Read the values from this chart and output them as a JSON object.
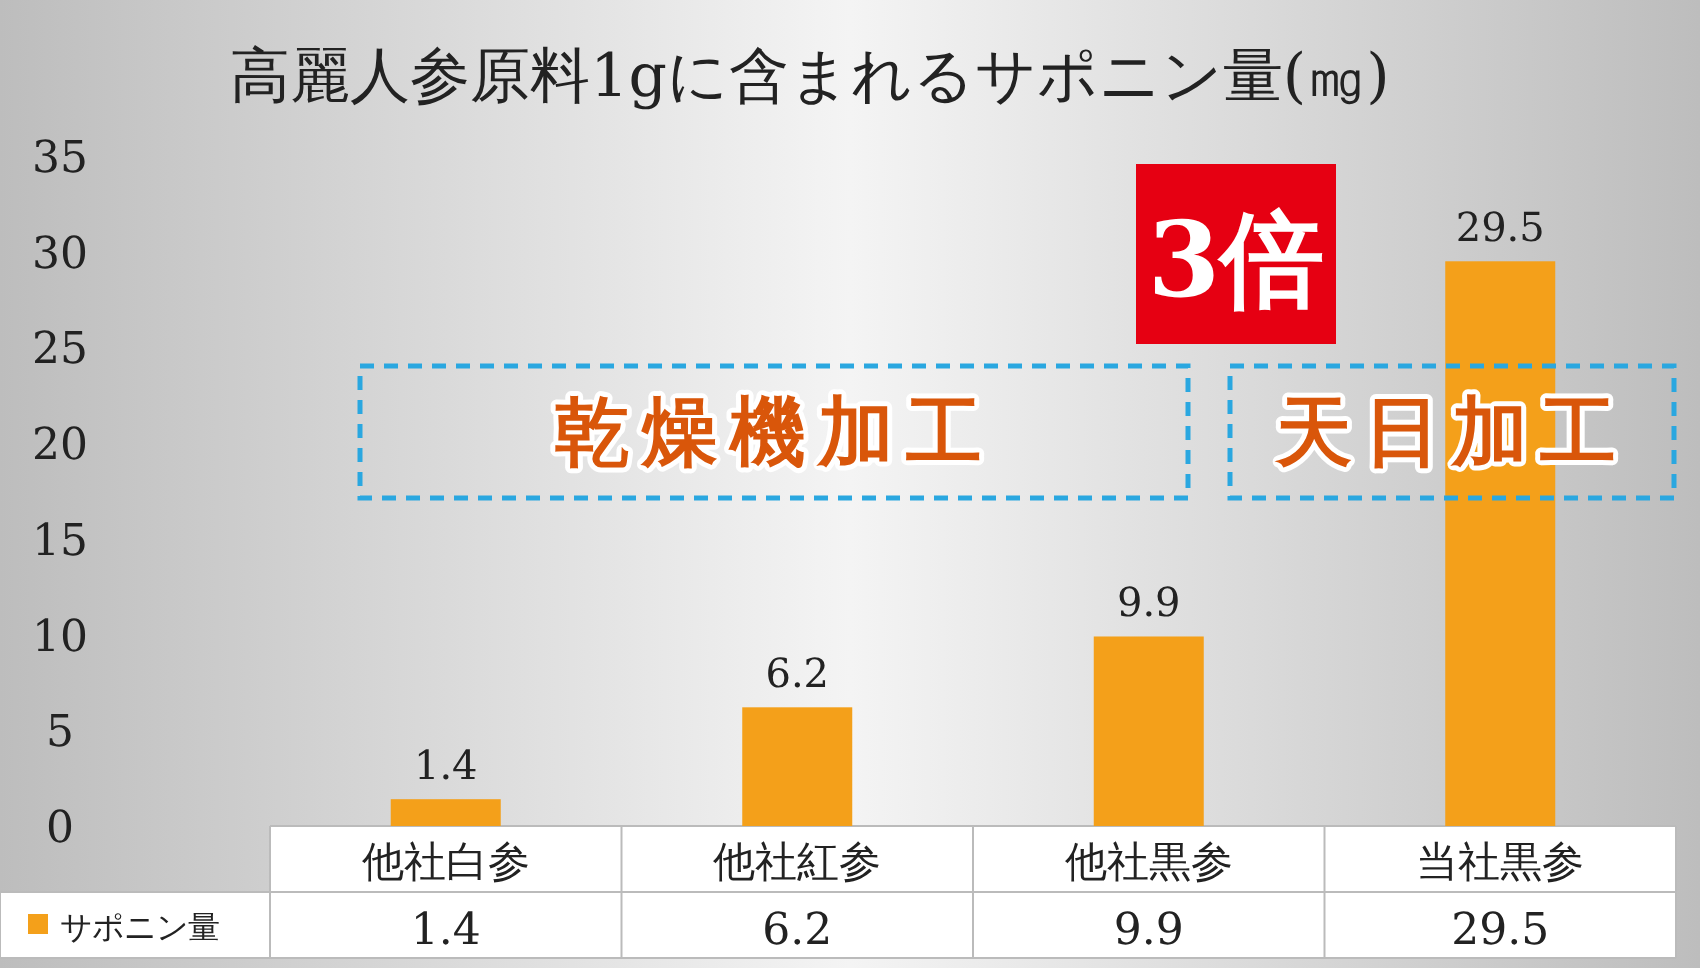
{
  "chart_data": {
    "type": "bar",
    "title": "高麗人参原料1gに含まれるサポニン量(㎎)",
    "categories": [
      "他社白参",
      "他社紅参",
      "他社黒参",
      "当社黒参"
    ],
    "series": [
      {
        "name": "サポニン量",
        "color": "#f4a01a",
        "values": [
          1.4,
          6.2,
          9.9,
          29.5
        ],
        "value_labels": [
          "1.4",
          "6.2",
          "9.9",
          "29.5"
        ]
      }
    ],
    "ylim": [
      0,
      35
    ],
    "yticks": [
      0,
      5,
      10,
      15,
      20,
      25,
      30,
      35
    ],
    "legend": "bottom left",
    "annotations": [
      "3倍",
      "乾燥機加工",
      "天日加工",
      "1.4",
      "6.2",
      "9.9",
      "29.5"
    ]
  }
}
